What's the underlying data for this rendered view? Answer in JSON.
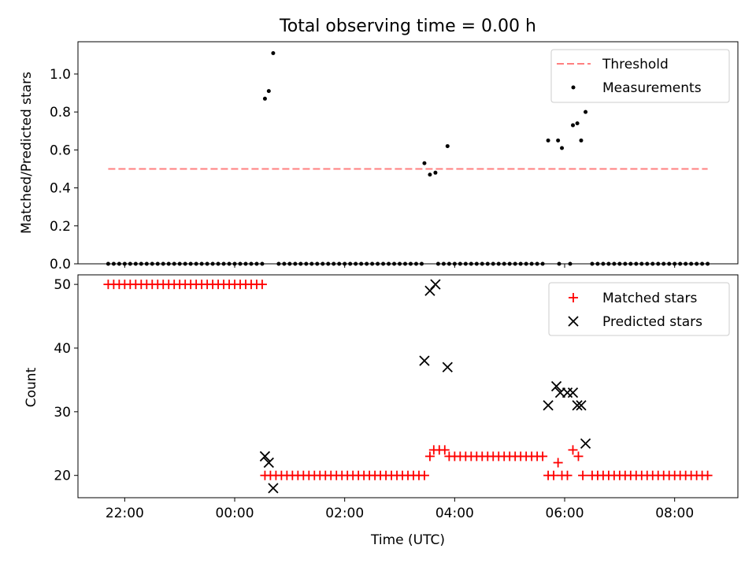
{
  "chart_data": [
    {
      "type": "scatter",
      "title": "Total observing time = 0.00 h",
      "xlabel": "",
      "ylabel": "Matched/Predicted stars",
      "ylim": [
        0,
        1.17
      ],
      "y_ticks": [
        "0.0",
        "0.2",
        "0.4",
        "0.6",
        "0.8",
        "1.0"
      ],
      "legend": "top-right",
      "threshold": {
        "name": "Threshold",
        "value": 0.5,
        "x_start": -2.3,
        "x_end": 8.6,
        "color": "#ff7f7f"
      },
      "series": [
        {
          "name": "Measurements",
          "color": "#000000",
          "zeros_ranges": [
            [
              -2.3,
              0.5,
              0.1
            ],
            [
              0.8,
              3.4,
              0.1
            ],
            [
              3.9,
              5.6,
              0.1
            ],
            [
              6.5,
              8.6,
              0.1
            ]
          ],
          "zeros_extra": [
            3.7,
            3.8,
            5.9,
            6.1
          ],
          "points": [
            [
              0.55,
              0.87
            ],
            [
              0.62,
              0.91
            ],
            [
              0.7,
              1.11
            ],
            [
              3.45,
              0.53
            ],
            [
              3.55,
              0.47
            ],
            [
              3.65,
              0.48
            ],
            [
              3.87,
              0.62
            ],
            [
              5.7,
              0.65
            ],
            [
              5.88,
              0.65
            ],
            [
              5.95,
              0.61
            ],
            [
              6.15,
              0.73
            ],
            [
              6.23,
              0.74
            ],
            [
              6.3,
              0.65
            ],
            [
              6.38,
              0.8
            ]
          ]
        }
      ]
    },
    {
      "type": "scatter",
      "title": "",
      "xlabel": "Time (UTC)",
      "ylabel": "Count",
      "ylim": [
        16.5,
        51.5
      ],
      "y_ticks": [
        "20",
        "30",
        "40",
        "50"
      ],
      "x_ticks": [
        {
          "value": -2,
          "label": "22:00"
        },
        {
          "value": 0,
          "label": "00:00"
        },
        {
          "value": 2,
          "label": "02:00"
        },
        {
          "value": 4,
          "label": "04:00"
        },
        {
          "value": 6,
          "label": "06:00"
        },
        {
          "value": 8,
          "label": "08:00"
        }
      ],
      "xlim": [
        -2.85,
        9.15
      ],
      "legend": "top-right",
      "series": [
        {
          "name": "Matched stars",
          "marker": "plus",
          "color": "#ff0000",
          "runs": [
            [
              -2.3,
              0.5,
              0.1,
              50
            ],
            [
              0.55,
              3.45,
              0.1,
              20
            ],
            [
              3.55,
              3.55,
              0.1,
              23
            ],
            [
              3.62,
              3.82,
              0.1,
              24
            ],
            [
              3.9,
              5.6,
              0.1,
              23
            ],
            [
              5.7,
              5.8,
              0.1,
              20
            ],
            [
              5.95,
              6.1,
              0.1,
              20
            ],
            [
              6.5,
              8.6,
              0.1,
              20
            ]
          ],
          "points": [
            [
              5.88,
              22
            ],
            [
              6.15,
              24
            ],
            [
              6.25,
              23
            ],
            [
              6.33,
              20
            ]
          ]
        },
        {
          "name": "Predicted stars",
          "marker": "x",
          "color": "#000000",
          "points": [
            [
              0.55,
              23
            ],
            [
              0.62,
              22
            ],
            [
              0.7,
              18
            ],
            [
              3.45,
              38
            ],
            [
              3.55,
              49
            ],
            [
              3.65,
              50
            ],
            [
              3.87,
              37
            ],
            [
              5.7,
              31
            ],
            [
              5.85,
              34
            ],
            [
              5.92,
              33
            ],
            [
              6.05,
              33
            ],
            [
              6.15,
              33
            ],
            [
              6.23,
              31
            ],
            [
              6.3,
              31
            ],
            [
              6.38,
              25
            ]
          ]
        }
      ]
    }
  ]
}
